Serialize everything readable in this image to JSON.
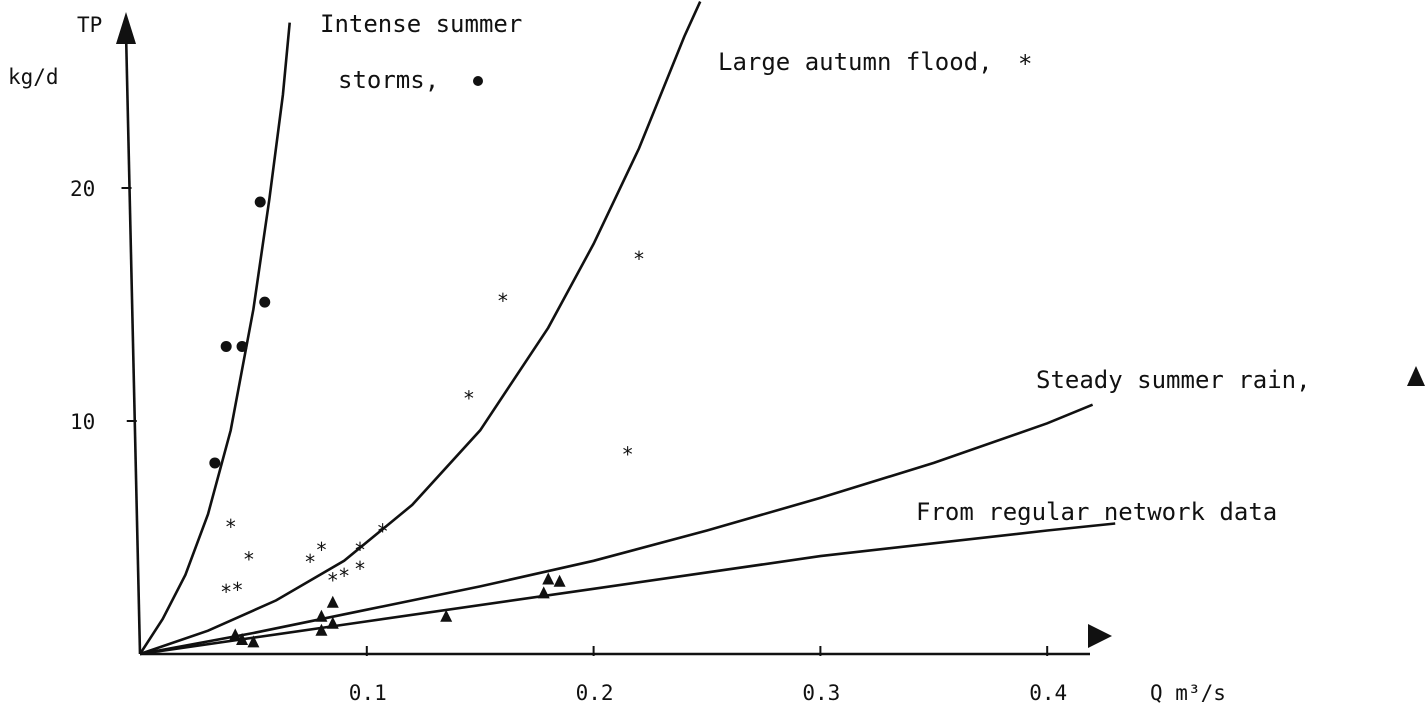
{
  "chart_data": {
    "type": "scatter",
    "title": "",
    "xlabel": "Q m³/s",
    "ylabel_line1": "TP",
    "ylabel_line2": "kg/d",
    "xlim": [
      0,
      0.45
    ],
    "ylim": [
      0,
      26
    ],
    "x_ticks": [
      {
        "value": 0.1,
        "label": "0.1"
      },
      {
        "value": 0.2,
        "label": "0.2"
      },
      {
        "value": 0.3,
        "label": "0.3"
      },
      {
        "value": 0.4,
        "label": "0.4"
      }
    ],
    "y_ticks": [
      {
        "value": 10,
        "label": "10"
      },
      {
        "value": 20,
        "label": "20"
      }
    ],
    "grid": false,
    "series": [
      {
        "name": "Intense summer storms,",
        "marker": "circle",
        "label_lines": [
          "Intense summer",
          "storms,"
        ],
        "points": [
          {
            "x": 0.033,
            "y": 8.2
          },
          {
            "x": 0.038,
            "y": 13.2
          },
          {
            "x": 0.045,
            "y": 13.2
          },
          {
            "x": 0.053,
            "y": 19.4
          },
          {
            "x": 0.055,
            "y": 15.1
          }
        ],
        "curve": [
          {
            "x": 0,
            "y": 0
          },
          {
            "x": 0.01,
            "y": 1.5
          },
          {
            "x": 0.02,
            "y": 3.4
          },
          {
            "x": 0.03,
            "y": 6.0
          },
          {
            "x": 0.04,
            "y": 9.6
          },
          {
            "x": 0.05,
            "y": 14.8
          },
          {
            "x": 0.057,
            "y": 19.5
          },
          {
            "x": 0.063,
            "y": 24.0
          },
          {
            "x": 0.066,
            "y": 27.1
          }
        ]
      },
      {
        "name": "Large autumn flood,",
        "marker": "star",
        "label_lines": [
          "Large autumn flood,"
        ],
        "points": [
          {
            "x": 0.04,
            "y": 5.5
          },
          {
            "x": 0.038,
            "y": 2.7
          },
          {
            "x": 0.043,
            "y": 2.8
          },
          {
            "x": 0.048,
            "y": 4.1
          },
          {
            "x": 0.075,
            "y": 4.0
          },
          {
            "x": 0.08,
            "y": 4.5
          },
          {
            "x": 0.085,
            "y": 3.2
          },
          {
            "x": 0.09,
            "y": 3.4
          },
          {
            "x": 0.097,
            "y": 3.7
          },
          {
            "x": 0.097,
            "y": 4.5
          },
          {
            "x": 0.107,
            "y": 5.3
          },
          {
            "x": 0.145,
            "y": 11.0
          },
          {
            "x": 0.16,
            "y": 15.2
          },
          {
            "x": 0.215,
            "y": 8.6
          },
          {
            "x": 0.22,
            "y": 17.0
          }
        ],
        "curve": [
          {
            "x": 0,
            "y": 0
          },
          {
            "x": 0.03,
            "y": 1.0
          },
          {
            "x": 0.06,
            "y": 2.3
          },
          {
            "x": 0.09,
            "y": 4.0
          },
          {
            "x": 0.12,
            "y": 6.4
          },
          {
            "x": 0.15,
            "y": 9.6
          },
          {
            "x": 0.18,
            "y": 14.0
          },
          {
            "x": 0.2,
            "y": 17.6
          },
          {
            "x": 0.22,
            "y": 21.7
          },
          {
            "x": 0.24,
            "y": 26.5
          },
          {
            "x": 0.247,
            "y": 28.0
          }
        ]
      },
      {
        "name": "Steady summer rain,",
        "marker": "triangle",
        "label_lines": [
          "Steady summer rain,"
        ],
        "points": [
          {
            "x": 0.042,
            "y": 0.8
          },
          {
            "x": 0.045,
            "y": 0.6
          },
          {
            "x": 0.05,
            "y": 0.5
          },
          {
            "x": 0.08,
            "y": 1.0
          },
          {
            "x": 0.08,
            "y": 1.6
          },
          {
            "x": 0.085,
            "y": 1.3
          },
          {
            "x": 0.085,
            "y": 2.2
          },
          {
            "x": 0.135,
            "y": 1.6
          },
          {
            "x": 0.178,
            "y": 2.6
          },
          {
            "x": 0.18,
            "y": 3.2
          },
          {
            "x": 0.185,
            "y": 3.1
          }
        ],
        "curve": [
          {
            "x": 0,
            "y": 0
          },
          {
            "x": 0.05,
            "y": 0.9
          },
          {
            "x": 0.1,
            "y": 1.9
          },
          {
            "x": 0.15,
            "y": 2.9
          },
          {
            "x": 0.2,
            "y": 4.0
          },
          {
            "x": 0.25,
            "y": 5.3
          },
          {
            "x": 0.3,
            "y": 6.7
          },
          {
            "x": 0.35,
            "y": 8.2
          },
          {
            "x": 0.4,
            "y": 9.9
          },
          {
            "x": 0.42,
            "y": 10.7
          }
        ]
      },
      {
        "name": "From regular network data",
        "marker": "none",
        "label_lines": [
          "From regular network data"
        ],
        "points": [],
        "curve": [
          {
            "x": 0,
            "y": 0
          },
          {
            "x": 0.1,
            "y": 1.4
          },
          {
            "x": 0.2,
            "y": 2.8
          },
          {
            "x": 0.3,
            "y": 4.2
          },
          {
            "x": 0.4,
            "y": 5.3
          },
          {
            "x": 0.43,
            "y": 5.6
          }
        ]
      }
    ]
  }
}
